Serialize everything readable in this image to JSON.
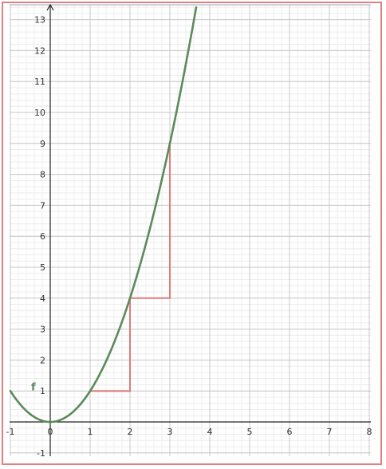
{
  "chart_data": {
    "type": "line",
    "xlim": [
      -1,
      8
    ],
    "ylim": [
      -1,
      13.5
    ],
    "x_ticks": [
      -1,
      0,
      1,
      2,
      3,
      4,
      5,
      6,
      7,
      8
    ],
    "y_ticks": [
      -1,
      1,
      2,
      3,
      4,
      5,
      6,
      7,
      8,
      9,
      10,
      11,
      12,
      13
    ],
    "x_tick_labels": [
      "-1",
      "0",
      "1",
      "2",
      "3",
      "4",
      "5",
      "6",
      "7",
      "8"
    ],
    "y_tick_labels": [
      "-1",
      "1",
      "2",
      "3",
      "4",
      "5",
      "6",
      "7",
      "8",
      "9",
      "10",
      "11",
      "12",
      "13"
    ],
    "grid": true,
    "minor_grid": true,
    "series": [
      {
        "name": "f",
        "function": "x^2",
        "x": [
          -1,
          -0.75,
          -0.5,
          -0.25,
          0,
          0.25,
          0.5,
          0.75,
          1,
          1.25,
          1.5,
          1.75,
          2,
          2.25,
          2.5,
          2.75,
          3,
          3.25,
          3.5,
          3.67
        ],
        "y": [
          1,
          0.5625,
          0.25,
          0.0625,
          0,
          0.0625,
          0.25,
          0.5625,
          1,
          1.5625,
          2.25,
          3.0625,
          4,
          5.0625,
          6.25,
          7.5625,
          9,
          10.5625,
          12.25,
          13.47
        ],
        "color": "#5b8a5b"
      },
      {
        "name": "",
        "x": [
          1,
          2,
          2,
          3,
          3
        ],
        "y": [
          1,
          1,
          4,
          4,
          9
        ],
        "color": "#e07b7b"
      }
    ],
    "function_label": "f"
  },
  "colors": {
    "frame": "#e08080",
    "grid_minor": "#ececec",
    "grid_major": "#c8c8c8",
    "axis": "#222222"
  }
}
